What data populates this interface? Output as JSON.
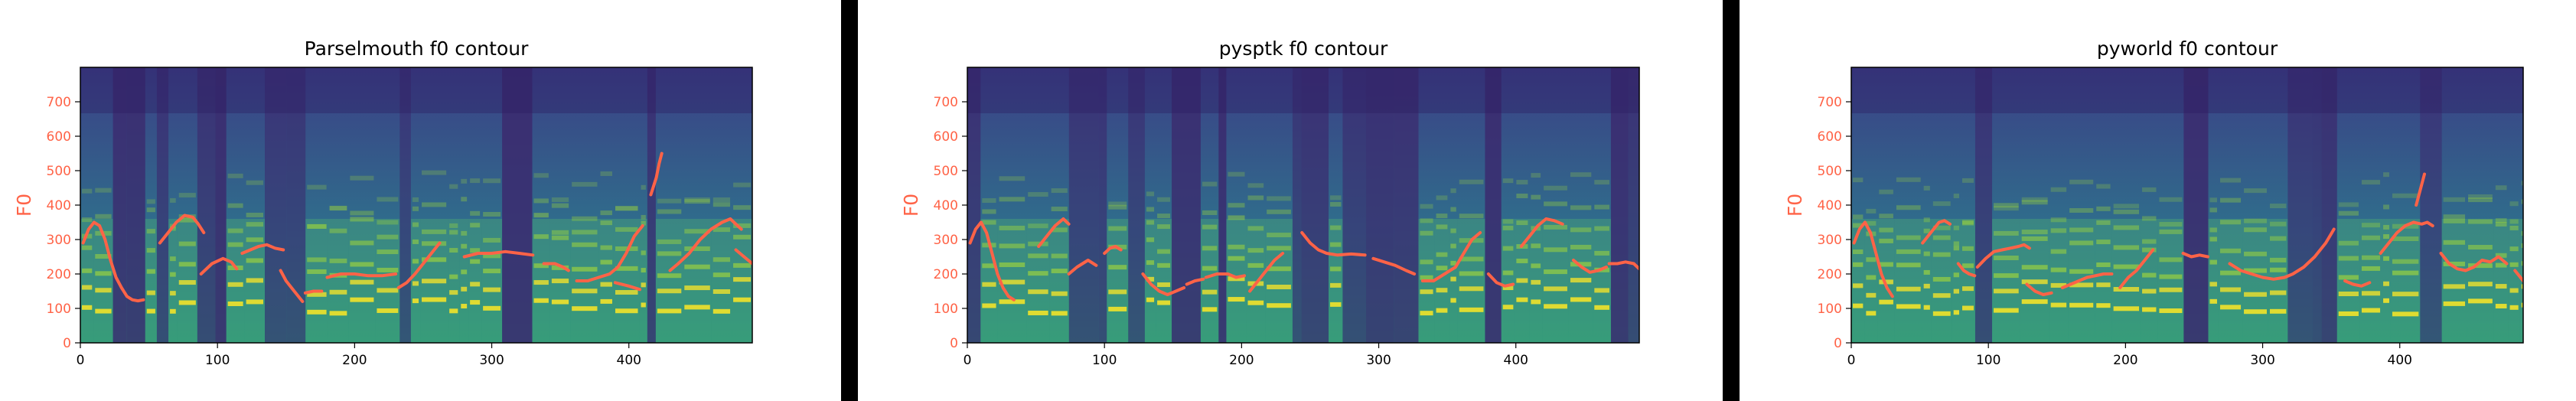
{
  "colors": {
    "contour": "#ff6347",
    "axis_label": "#ff6347",
    "spectrogram_low": "#3b1f6b",
    "spectrogram_mid": "#21918c",
    "spectrogram_high": "#fde725"
  },
  "chart_data": [
    {
      "type": "line",
      "title": "Parselmouth f0 contour",
      "xlabel": "",
      "ylabel": "F0",
      "xlim": [
        0,
        490
      ],
      "ylim": [
        0,
        800
      ],
      "xticks": [
        0,
        100,
        200,
        300,
        400
      ],
      "yticks": [
        0,
        100,
        200,
        300,
        400,
        500,
        600,
        700
      ],
      "background": "spectrogram",
      "segments": [
        [
          [
            2,
            290
          ],
          [
            6,
            330
          ],
          [
            10,
            350
          ],
          [
            14,
            340
          ],
          [
            18,
            300
          ],
          [
            22,
            240
          ],
          [
            26,
            190
          ],
          [
            30,
            160
          ],
          [
            34,
            135
          ],
          [
            38,
            125
          ],
          [
            42,
            122
          ],
          [
            46,
            125
          ]
        ],
        [
          [
            58,
            290
          ],
          [
            64,
            320
          ],
          [
            70,
            350
          ],
          [
            76,
            370
          ],
          [
            82,
            365
          ],
          [
            86,
            345
          ],
          [
            90,
            320
          ]
        ],
        [
          [
            88,
            200
          ],
          [
            96,
            230
          ],
          [
            104,
            245
          ],
          [
            110,
            235
          ],
          [
            114,
            215
          ]
        ],
        [
          [
            118,
            260
          ],
          [
            124,
            270
          ],
          [
            130,
            280
          ],
          [
            136,
            285
          ],
          [
            142,
            275
          ],
          [
            148,
            270
          ]
        ],
        [
          [
            146,
            210
          ],
          [
            150,
            180
          ],
          [
            154,
            160
          ],
          [
            158,
            140
          ],
          [
            162,
            120
          ]
        ],
        [
          [
            164,
            145
          ],
          [
            170,
            150
          ],
          [
            176,
            150
          ]
        ],
        [
          [
            180,
            190
          ],
          [
            190,
            200
          ],
          [
            200,
            200
          ],
          [
            210,
            195
          ],
          [
            220,
            195
          ],
          [
            230,
            200
          ]
        ],
        [
          [
            232,
            160
          ],
          [
            238,
            175
          ],
          [
            244,
            200
          ],
          [
            250,
            230
          ],
          [
            256,
            260
          ],
          [
            262,
            290
          ]
        ],
        [
          [
            280,
            250
          ],
          [
            290,
            260
          ],
          [
            300,
            260
          ],
          [
            310,
            265
          ],
          [
            320,
            260
          ],
          [
            330,
            255
          ]
        ],
        [
          [
            338,
            230
          ],
          [
            346,
            230
          ],
          [
            352,
            220
          ],
          [
            356,
            210
          ]
        ],
        [
          [
            362,
            180
          ],
          [
            370,
            180
          ],
          [
            378,
            190
          ],
          [
            386,
            200
          ],
          [
            392,
            220
          ],
          [
            398,
            260
          ],
          [
            404,
            310
          ],
          [
            410,
            340
          ]
        ],
        [
          [
            390,
            175
          ],
          [
            400,
            165
          ],
          [
            408,
            155
          ]
        ],
        [
          [
            416,
            430
          ],
          [
            420,
            480
          ],
          [
            422,
            520
          ],
          [
            424,
            550
          ]
        ],
        [
          [
            430,
            210
          ],
          [
            436,
            230
          ],
          [
            444,
            260
          ],
          [
            452,
            300
          ],
          [
            460,
            330
          ],
          [
            468,
            350
          ],
          [
            474,
            360
          ],
          [
            478,
            345
          ],
          [
            482,
            330
          ]
        ],
        [
          [
            478,
            270
          ],
          [
            484,
            250
          ],
          [
            490,
            230
          ],
          [
            496,
            210
          ],
          [
            500,
            200
          ],
          [
            504,
            205
          ]
        ]
      ]
    },
    {
      "type": "line",
      "title": "pysptk f0 contour",
      "xlabel": "",
      "ylabel": "F0",
      "xlim": [
        0,
        490
      ],
      "ylim": [
        0,
        800
      ],
      "xticks": [
        0,
        100,
        200,
        300,
        400
      ],
      "yticks": [
        0,
        100,
        200,
        300,
        400,
        500,
        600,
        700
      ],
      "background": "spectrogram",
      "segments": [
        [
          [
            2,
            290
          ],
          [
            6,
            330
          ],
          [
            10,
            350
          ],
          [
            14,
            320
          ],
          [
            18,
            260
          ],
          [
            22,
            200
          ],
          [
            26,
            160
          ],
          [
            30,
            135
          ],
          [
            34,
            125
          ]
        ],
        [
          [
            52,
            280
          ],
          [
            58,
            310
          ],
          [
            64,
            340
          ],
          [
            70,
            360
          ],
          [
            74,
            345
          ]
        ],
        [
          [
            74,
            200
          ],
          [
            80,
            220
          ],
          [
            88,
            240
          ],
          [
            94,
            225
          ]
        ],
        [
          [
            100,
            260
          ],
          [
            104,
            275
          ],
          [
            108,
            280
          ],
          [
            112,
            270
          ]
        ],
        [
          [
            128,
            200
          ],
          [
            134,
            170
          ],
          [
            140,
            150
          ],
          [
            146,
            140
          ],
          [
            152,
            150
          ],
          [
            158,
            160
          ]
        ],
        [
          [
            160,
            170
          ],
          [
            166,
            180
          ],
          [
            172,
            185
          ]
        ],
        [
          [
            174,
            190
          ],
          [
            182,
            200
          ],
          [
            190,
            200
          ],
          [
            196,
            190
          ],
          [
            202,
            195
          ]
        ],
        [
          [
            206,
            150
          ],
          [
            212,
            180
          ],
          [
            218,
            210
          ],
          [
            224,
            240
          ],
          [
            230,
            260
          ]
        ],
        [
          [
            244,
            320
          ],
          [
            250,
            290
          ],
          [
            256,
            270
          ],
          [
            262,
            260
          ],
          [
            270,
            255
          ],
          [
            280,
            258
          ],
          [
            290,
            255
          ]
        ],
        [
          [
            296,
            245
          ],
          [
            304,
            235
          ],
          [
            312,
            225
          ],
          [
            320,
            210
          ],
          [
            326,
            200
          ]
        ],
        [
          [
            332,
            180
          ],
          [
            340,
            180
          ],
          [
            348,
            200
          ],
          [
            356,
            220
          ],
          [
            362,
            260
          ],
          [
            368,
            300
          ],
          [
            374,
            320
          ]
        ],
        [
          [
            380,
            200
          ],
          [
            386,
            175
          ],
          [
            392,
            165
          ],
          [
            398,
            170
          ]
        ],
        [
          [
            404,
            280
          ],
          [
            410,
            310
          ],
          [
            416,
            340
          ],
          [
            422,
            360
          ],
          [
            428,
            355
          ],
          [
            434,
            345
          ]
        ],
        [
          [
            442,
            240
          ],
          [
            448,
            220
          ],
          [
            454,
            205
          ],
          [
            460,
            210
          ],
          [
            466,
            220
          ]
        ],
        [
          [
            468,
            230
          ],
          [
            474,
            230
          ],
          [
            480,
            235
          ],
          [
            486,
            230
          ],
          [
            490,
            215
          ],
          [
            496,
            200
          ],
          [
            500,
            190
          ]
        ]
      ]
    },
    {
      "type": "line",
      "title": "pyworld f0 contour",
      "xlabel": "",
      "ylabel": "F0",
      "xlim": [
        0,
        490
      ],
      "ylim": [
        0,
        800
      ],
      "xticks": [
        0,
        100,
        200,
        300,
        400
      ],
      "yticks": [
        0,
        100,
        200,
        300,
        400,
        500,
        600,
        700
      ],
      "background": "spectrogram",
      "segments": [
        [
          [
            2,
            290
          ],
          [
            6,
            330
          ],
          [
            10,
            350
          ],
          [
            14,
            320
          ],
          [
            18,
            260
          ],
          [
            22,
            200
          ],
          [
            26,
            160
          ],
          [
            30,
            135
          ]
        ],
        [
          [
            52,
            290
          ],
          [
            56,
            310
          ],
          [
            60,
            330
          ],
          [
            64,
            350
          ],
          [
            68,
            355
          ],
          [
            72,
            345
          ]
        ],
        [
          [
            78,
            230
          ],
          [
            82,
            210
          ],
          [
            86,
            200
          ],
          [
            90,
            195
          ]
        ],
        [
          [
            92,
            220
          ],
          [
            98,
            245
          ],
          [
            104,
            265
          ],
          [
            110,
            270
          ],
          [
            116,
            275
          ],
          [
            122,
            280
          ],
          [
            126,
            285
          ],
          [
            130,
            275
          ]
        ],
        [
          [
            128,
            170
          ],
          [
            134,
            150
          ],
          [
            140,
            140
          ],
          [
            146,
            145
          ]
        ],
        [
          [
            154,
            160
          ],
          [
            160,
            170
          ],
          [
            166,
            180
          ],
          [
            172,
            190
          ],
          [
            178,
            195
          ],
          [
            184,
            200
          ],
          [
            190,
            200
          ]
        ],
        [
          [
            196,
            160
          ],
          [
            202,
            190
          ],
          [
            208,
            210
          ],
          [
            214,
            240
          ],
          [
            220,
            270
          ]
        ],
        [
          [
            242,
            260
          ],
          [
            248,
            250
          ],
          [
            254,
            255
          ],
          [
            260,
            250
          ]
        ],
        [
          [
            276,
            230
          ],
          [
            284,
            210
          ],
          [
            292,
            200
          ],
          [
            300,
            190
          ],
          [
            308,
            185
          ],
          [
            316,
            190
          ],
          [
            322,
            200
          ],
          [
            330,
            220
          ],
          [
            338,
            250
          ],
          [
            346,
            290
          ],
          [
            352,
            330
          ]
        ],
        [
          [
            360,
            180
          ],
          [
            366,
            170
          ],
          [
            372,
            165
          ],
          [
            378,
            175
          ]
        ],
        [
          [
            386,
            260
          ],
          [
            392,
            290
          ],
          [
            398,
            320
          ],
          [
            404,
            340
          ],
          [
            410,
            350
          ],
          [
            416,
            345
          ],
          [
            420,
            350
          ],
          [
            424,
            340
          ]
        ],
        [
          [
            412,
            400
          ],
          [
            414,
            430
          ],
          [
            416,
            460
          ],
          [
            418,
            490
          ]
        ],
        [
          [
            430,
            260
          ],
          [
            436,
            230
          ],
          [
            442,
            215
          ],
          [
            448,
            210
          ],
          [
            454,
            220
          ],
          [
            460,
            240
          ],
          [
            466,
            235
          ],
          [
            472,
            250
          ],
          [
            478,
            230
          ]
        ],
        [
          [
            484,
            210
          ],
          [
            490,
            180
          ],
          [
            496,
            150
          ],
          [
            502,
            140
          ],
          [
            508,
            150
          ],
          [
            514,
            160
          ],
          [
            520,
            170
          ]
        ]
      ]
    }
  ]
}
